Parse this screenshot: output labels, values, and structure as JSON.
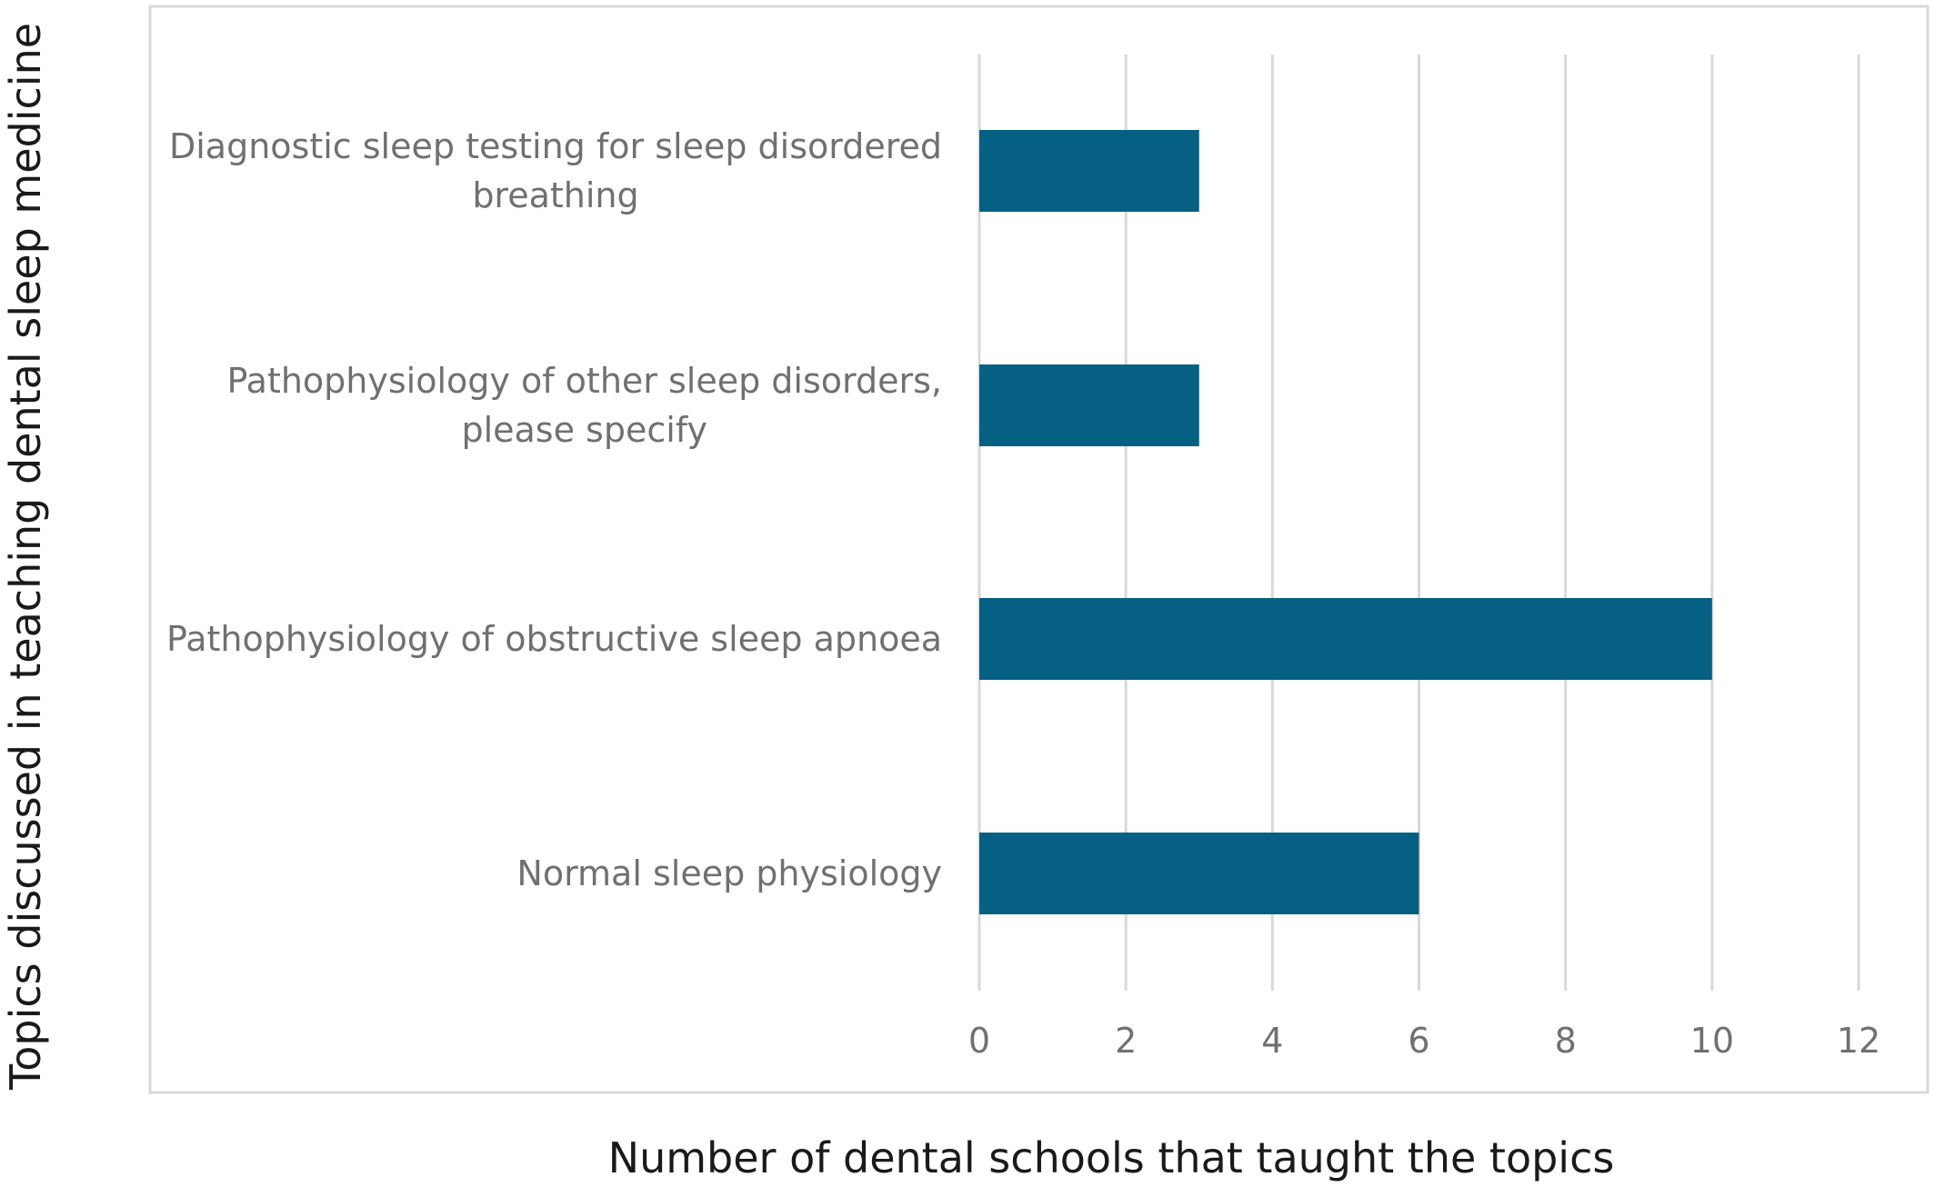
{
  "chart_data": {
    "type": "bar",
    "orientation": "horizontal",
    "categories": [
      [
        "Diagnostic sleep testing for sleep disordered",
        "breathing"
      ],
      [
        "Pathophysiology of other sleep disorders,",
        "please specify"
      ],
      [
        "Pathophysiology of obstructive sleep apnoea"
      ],
      [
        "Normal sleep physiology"
      ]
    ],
    "values": [
      3,
      3,
      10,
      6
    ],
    "xlabel": "Number of dental schools that taught the topics",
    "ylabel": "Topics discussed in teaching dental sleep medicine",
    "xlim": [
      0,
      12
    ],
    "xticks": [
      "0",
      "2",
      "4",
      "6",
      "8",
      "10",
      "12"
    ],
    "grid": "vertical",
    "legend": "none",
    "colors": {
      "bar": "#066083",
      "grid": "#d9d9d9",
      "frame": "#d9d9d9"
    }
  }
}
